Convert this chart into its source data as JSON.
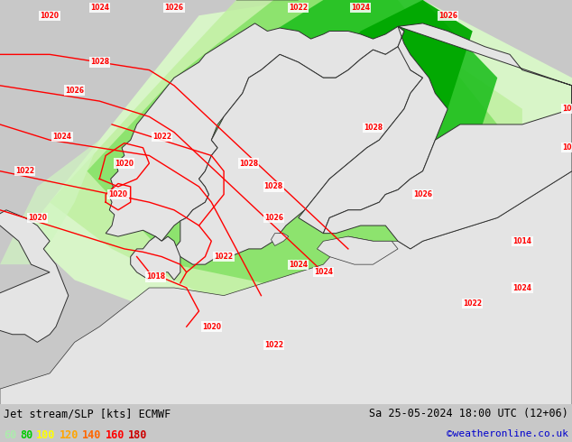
{
  "title_left": "Jet stream/SLP [kts] ECMWF",
  "title_right": "Sa 25-05-2024 18:00 UTC (12+06)",
  "credit": "©weatheronline.co.uk",
  "legend_values": [
    "60",
    "80",
    "100",
    "120",
    "140",
    "160",
    "180"
  ],
  "legend_colors": [
    "#adebad",
    "#00cc00",
    "#ffff00",
    "#ffa500",
    "#ff6600",
    "#ff0000",
    "#cc0000"
  ],
  "bg_color": "#c8c8c8",
  "land_color": "#e8e8e8",
  "ocean_color": "#d8e8f0",
  "fig_width": 6.34,
  "fig_height": 4.9,
  "dpi": 100,
  "credit_color": "#0000cc",
  "contour_color": "#ff0000",
  "coastline_color": "#303030",
  "border_color": "#606060"
}
